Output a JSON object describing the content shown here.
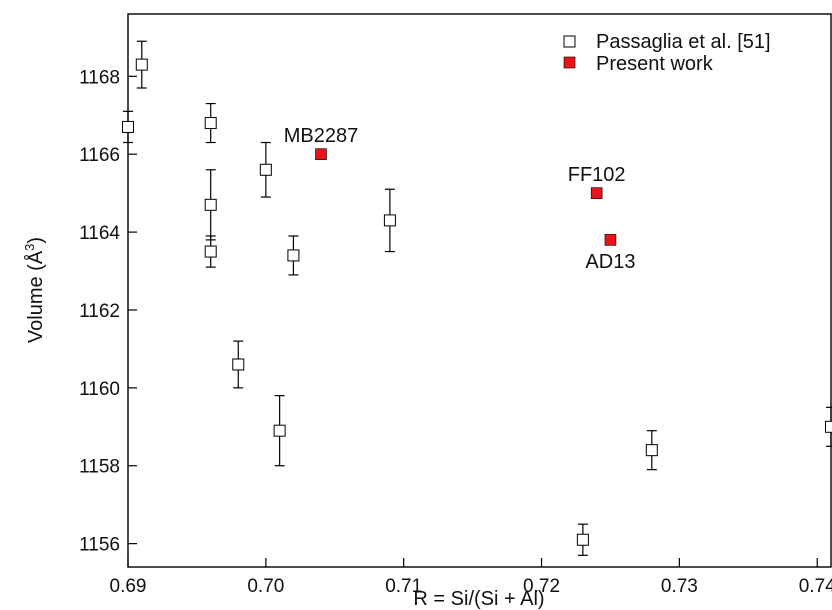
{
  "chart_data": {
    "type": "scatter",
    "title": "",
    "xlabel": "R = Si/(Si + Al)",
    "ylabel": "Volume (Å3)",
    "ylabel_base": "Volume (Å",
    "ylabel_sup": "3",
    "ylabel_close": ")",
    "xlim": [
      0.69,
      0.741
    ],
    "ylim": [
      1155.4,
      1169.6
    ],
    "x_ticks": [
      0.69,
      0.7,
      0.71,
      0.72,
      0.73,
      0.74
    ],
    "x_tick_labels": [
      "0.69",
      "0.70",
      "0.71",
      "0.72",
      "0.73",
      "0.74"
    ],
    "y_ticks": [
      1156,
      1158,
      1160,
      1162,
      1164,
      1166,
      1168
    ],
    "y_tick_labels": [
      "1156",
      "1158",
      "1160",
      "1162",
      "1164",
      "1166",
      "1168"
    ],
    "grid": false,
    "legend_position": "top-right",
    "series": [
      {
        "name": "Passaglia et al. [51]",
        "marker": "open-square",
        "color": "#000000",
        "points": [
          {
            "x": 0.69,
            "y": 1166.7,
            "err": 0.4
          },
          {
            "x": 0.691,
            "y": 1168.3,
            "err": 0.6
          },
          {
            "x": 0.696,
            "y": 1166.8,
            "err": 0.5
          },
          {
            "x": 0.696,
            "y": 1164.7,
            "err": 0.9
          },
          {
            "x": 0.696,
            "y": 1163.5,
            "err": 0.4
          },
          {
            "x": 0.698,
            "y": 1160.6,
            "err": 0.6
          },
          {
            "x": 0.7,
            "y": 1165.6,
            "err": 0.7
          },
          {
            "x": 0.701,
            "y": 1158.9,
            "err": 0.9
          },
          {
            "x": 0.702,
            "y": 1163.4,
            "err": 0.5
          },
          {
            "x": 0.709,
            "y": 1164.3,
            "err": 0.8
          },
          {
            "x": 0.723,
            "y": 1156.1,
            "err": 0.4
          },
          {
            "x": 0.728,
            "y": 1158.4,
            "err": 0.5
          },
          {
            "x": 0.741,
            "y": 1159.0,
            "err": 0.5
          }
        ]
      },
      {
        "name": "Present work",
        "marker": "filled-square",
        "color": "#e8141b",
        "points": [
          {
            "x": 0.704,
            "y": 1166.0,
            "label": "MB2287",
            "label_pos": "above"
          },
          {
            "x": 0.724,
            "y": 1165.0,
            "label": "FF102",
            "label_pos": "above"
          },
          {
            "x": 0.725,
            "y": 1163.8,
            "label": "AD13",
            "label_pos": "below"
          }
        ]
      }
    ]
  }
}
